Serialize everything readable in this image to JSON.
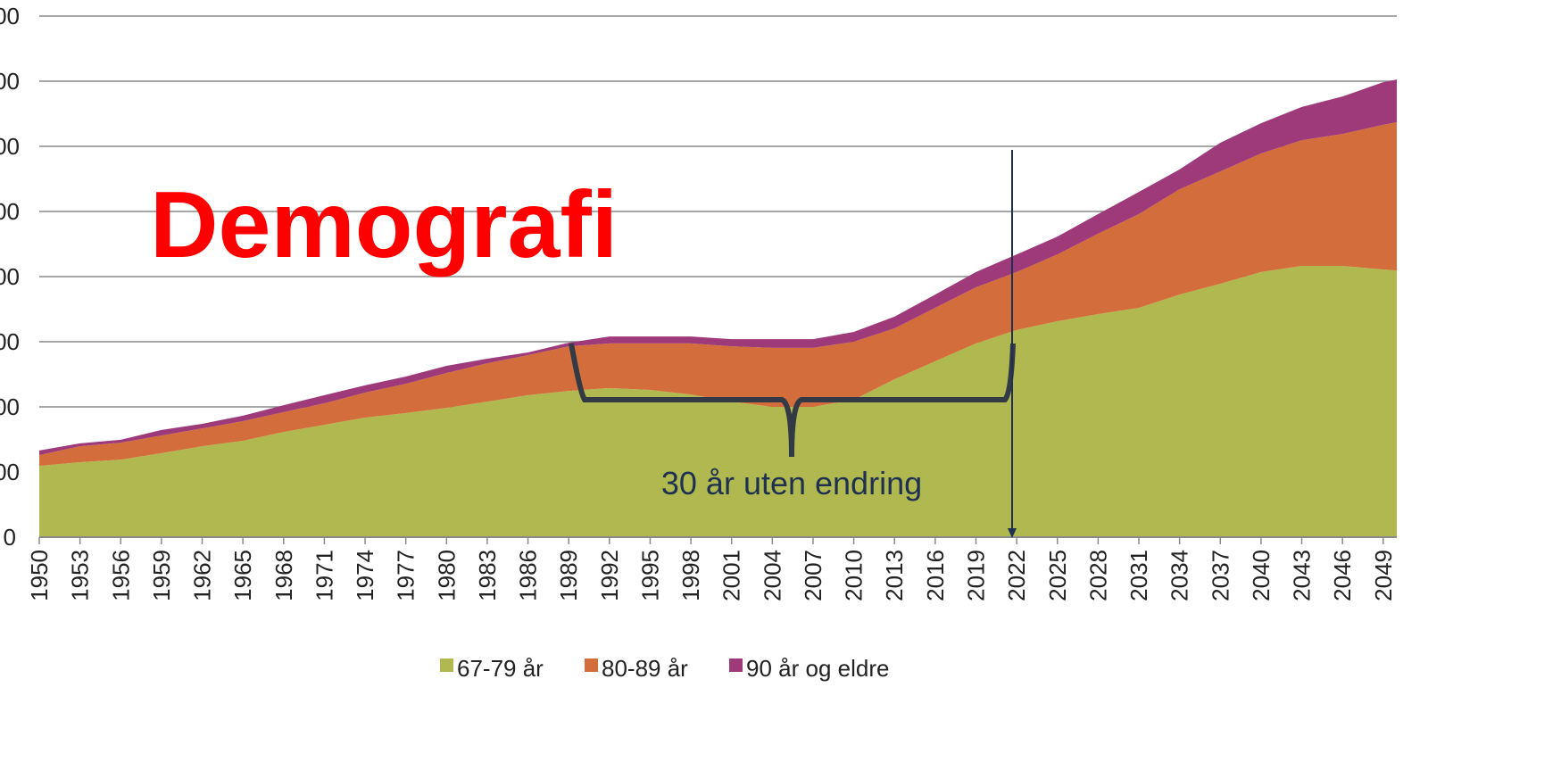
{
  "chart_data": {
    "type": "stacked_area",
    "title": "Demografi",
    "annotations": [
      "30 år uten endring"
    ],
    "x": [
      1950,
      1953,
      1956,
      1959,
      1962,
      1965,
      1968,
      1971,
      1974,
      1977,
      1980,
      1983,
      1986,
      1989,
      1992,
      1995,
      1998,
      2001,
      2004,
      2007,
      2010,
      2013,
      2016,
      2019,
      2022,
      2025,
      2028,
      2031,
      2034,
      2037,
      2040,
      2043,
      2046,
      2049,
      2050
    ],
    "series": [
      {
        "name": "67-79 år",
        "color": "#b0b94f",
        "values": [
          219,
          230,
          238,
          258,
          279,
          296,
          323,
          345,
          367,
          381,
          397,
          416,
          436,
          449,
          458,
          452,
          438,
          416,
          400,
          400,
          422,
          485,
          540,
          595,
          636,
          663,
          685,
          704,
          745,
          778,
          814,
          833,
          833,
          822,
          819
        ]
      },
      {
        "name": "80-89 år",
        "color": "#d46d3c",
        "values": [
          33,
          49,
          52,
          54,
          55,
          60,
          61,
          66,
          77,
          90,
          107,
          118,
          123,
          137,
          137,
          143,
          157,
          170,
          181,
          181,
          178,
          156,
          164,
          172,
          178,
          205,
          247,
          288,
          323,
          345,
          364,
          386,
          405,
          444,
          455
        ]
      },
      {
        "name": "90 år og eldre",
        "color": "#9e3a7a",
        "values": [
          14,
          9,
          9,
          17,
          14,
          17,
          21,
          25,
          22,
          22,
          22,
          14,
          8,
          11,
          21,
          21,
          21,
          22,
          27,
          27,
          30,
          36,
          41,
          47,
          54,
          55,
          60,
          68,
          61,
          88,
          93,
          102,
          115,
          131,
          131
        ]
      }
    ],
    "xlim": [
      1950,
      2050
    ],
    "xticks": [
      1950,
      1953,
      1956,
      1959,
      1962,
      1965,
      1968,
      1971,
      1974,
      1977,
      1980,
      1983,
      1986,
      1989,
      1992,
      1995,
      1998,
      2001,
      2004,
      2007,
      2010,
      2013,
      2016,
      2019,
      2022,
      2025,
      2028,
      2031,
      2034,
      2037,
      2040,
      2043,
      2046,
      2049
    ],
    "ylim": [
      0,
      1600
    ],
    "yticks": [
      0,
      {
        "value": 200,
        "label": "00"
      },
      {
        "value": 400,
        "label": "00"
      },
      {
        "value": 600,
        "label": "00"
      },
      {
        "value": 800,
        "label": "00"
      },
      {
        "value": 1000,
        "label": "00"
      },
      {
        "value": 1200,
        "label": "00"
      },
      {
        "value": 1400,
        "label": "00"
      },
      {
        "value": 1600,
        "label": "00"
      }
    ],
    "grid": true
  }
}
